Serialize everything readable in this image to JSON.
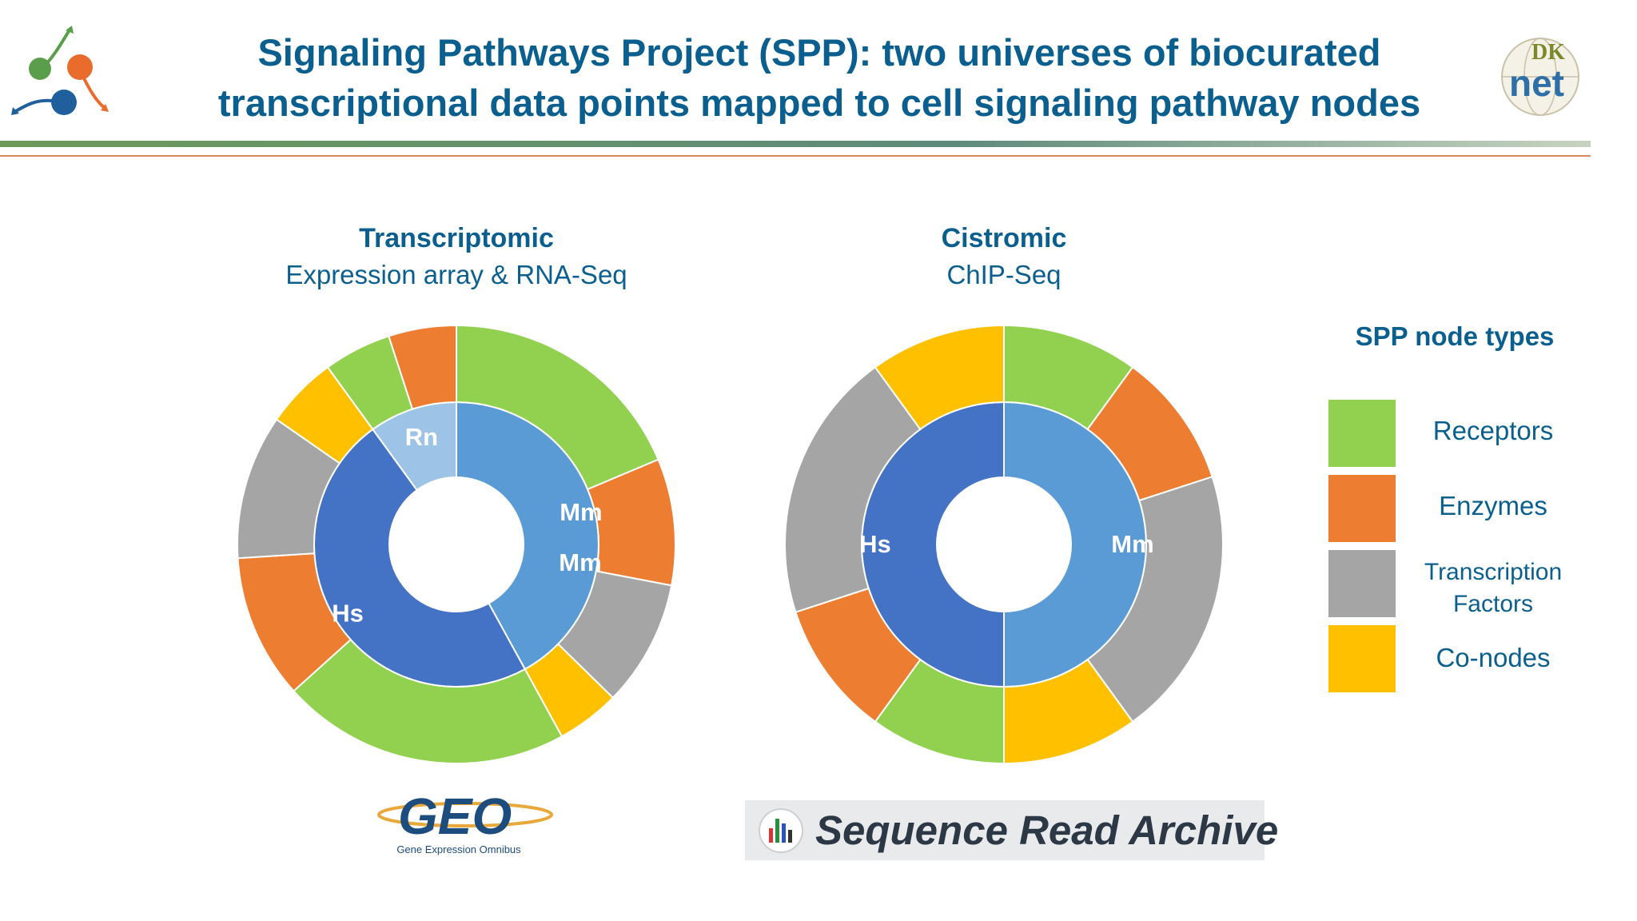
{
  "header": {
    "title_line1": "Signaling Pathways Project (SPP): two universes of biocurated",
    "title_line2": "transcriptional data points mapped to cell signaling pathway nodes",
    "right_logo_top": "DK",
    "right_logo_bottom": "net"
  },
  "colors": {
    "Receptors": "#92d050",
    "Enzymes": "#ed7d31",
    "Transcription Factors": "#a5a5a5",
    "Co-nodes": "#ffc000",
    "Hs": "#4472c4",
    "Mm": "#5b9bd5",
    "Rn": "#9dc3e6",
    "title": "#0b5f8f"
  },
  "legend": {
    "title": "SPP node types",
    "items": [
      {
        "key": "Receptors",
        "label": "Receptors"
      },
      {
        "key": "Enzymes",
        "label": "Enzymes"
      },
      {
        "key": "Transcription Factors",
        "label_line1": "Transcription",
        "label_line2": "Factors"
      },
      {
        "key": "Co-nodes",
        "label": "Co-nodes"
      }
    ]
  },
  "chart_data": [
    {
      "type": "pie",
      "subtype": "nested-donut",
      "title": "Transcriptomic",
      "subtitle": "Expression array & RNA-Seq",
      "inner_ring": {
        "categories": [
          "Mm",
          "Hs",
          "Rn"
        ],
        "values": [
          42,
          48,
          10
        ],
        "labels_shown": [
          "Rn",
          "Hs",
          "Mm",
          "Mm"
        ]
      },
      "outer_ring": {
        "series": [
          {
            "parent": "Mm",
            "categories": [
              "Receptors",
              "Enzymes",
              "Transcription Factors",
              "Co-nodes"
            ],
            "values": [
              20,
              10,
              10,
              5
            ]
          },
          {
            "parent": "Hs",
            "categories": [
              "Receptors",
              "Enzymes",
              "Transcription Factors",
              "Co-nodes"
            ],
            "values": [
              20,
              10,
              10,
              5
            ]
          },
          {
            "parent": "Rn",
            "categories": [
              "Receptors",
              "Enzymes"
            ],
            "values": [
              5,
              5
            ]
          }
        ]
      }
    },
    {
      "type": "pie",
      "subtype": "nested-donut",
      "title": "Cistromic",
      "subtitle": "ChIP-Seq",
      "inner_ring": {
        "categories": [
          "Mm",
          "Hs"
        ],
        "values": [
          50,
          50
        ],
        "labels_shown": [
          "Hs",
          "Mm"
        ]
      },
      "outer_ring": {
        "series": [
          {
            "parent": "Mm",
            "categories": [
              "Receptors",
              "Enzymes",
              "Transcription Factors",
              "Co-nodes"
            ],
            "values": [
              10,
              10,
              20,
              10
            ]
          },
          {
            "parent": "Hs",
            "categories": [
              "Receptors",
              "Enzymes",
              "Transcription Factors",
              "Co-nodes"
            ],
            "values": [
              10,
              10,
              20,
              10
            ]
          }
        ]
      }
    }
  ],
  "footer": {
    "geo_logo_text": "GEO",
    "geo_logo_sub": "Gene Expression Omnibus",
    "sra_logo_text": "Sequence Read Archive"
  }
}
